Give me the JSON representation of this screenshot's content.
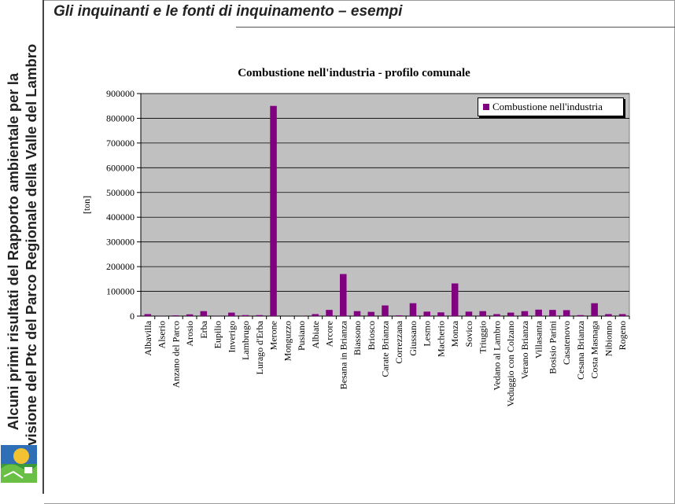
{
  "slide": {
    "header_title": "Gli inquinanti e le fonti di inquinamento – esempi",
    "side_title_lines": [
      "Alcuni primi risultati del Rapporto ambientale per la",
      "revisione del Ptc del Parco Regionale della Valle del Lambro"
    ],
    "logo_icon": "park-logo-icon"
  },
  "chart_data": {
    "type": "bar",
    "title": "Combustione nell'industria - profilo comunale",
    "xlabel": "",
    "ylabel": "[ton]",
    "ylim": [
      0,
      900000
    ],
    "yticks": [
      0,
      100000,
      200000,
      300000,
      400000,
      500000,
      600000,
      700000,
      800000,
      900000
    ],
    "ytick_labels": [
      "0",
      "100000",
      "200000",
      "300000",
      "400000",
      "500000",
      "600000",
      "700000",
      "800000",
      "900000"
    ],
    "grid": true,
    "legend_position": "top-right",
    "colors": {
      "bar": "#800080",
      "plot_bg": "#c0c0c0",
      "grid": "#000000"
    },
    "categories": [
      "Albavilla",
      "Alserio",
      "Anzano del Parco",
      "Arosio",
      "Erba",
      "Eupilio",
      "Inverigo",
      "Lambrugo",
      "Lurago d'Erba",
      "Merone",
      "Monguzzo",
      "Pusiano",
      "Albiate",
      "Arcore",
      "Besana in Brianza",
      "Biassono",
      "Briosco",
      "Carate Brianza",
      "Correzzana",
      "Giussano",
      "Lesmo",
      "Macherio",
      "Monza",
      "Sovico",
      "Triuggio",
      "Vedano al Lambro",
      "Veduggio con Colzano",
      "Verano Brianza",
      "Villasanta",
      "Bosisio Parini",
      "Casatenovo",
      "Cesana Brianza",
      "Costa Masnaga",
      "Nibionno",
      "Rogeno"
    ],
    "series": [
      {
        "name": "Combustione nell'industria",
        "values": [
          8000,
          500,
          3000,
          7000,
          20000,
          500,
          14000,
          4000,
          4000,
          850000,
          500,
          500,
          8000,
          25000,
          170000,
          20000,
          17000,
          43000,
          3000,
          52000,
          18000,
          15000,
          132000,
          18000,
          20000,
          8000,
          14000,
          20000,
          26000,
          25000,
          24000,
          4000,
          52000,
          8000,
          8000
        ]
      }
    ]
  }
}
